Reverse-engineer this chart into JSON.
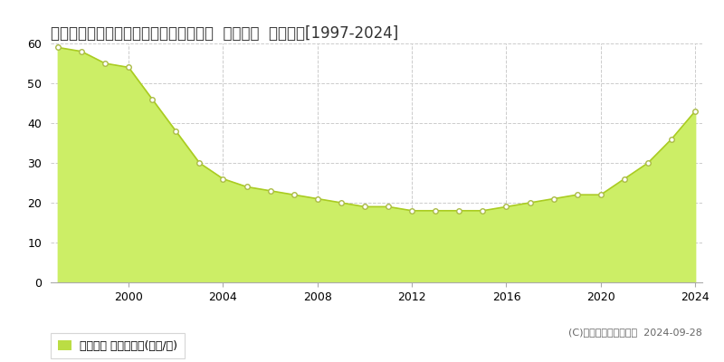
{
  "title": "福岡県福岡市東区多の津２丁目７番２２  基準地価  地価推移[1997-2024]",
  "years": [
    1997,
    1998,
    1999,
    2000,
    2001,
    2002,
    2003,
    2004,
    2005,
    2006,
    2007,
    2008,
    2009,
    2010,
    2011,
    2012,
    2013,
    2014,
    2015,
    2016,
    2017,
    2018,
    2019,
    2020,
    2021,
    2022,
    2023,
    2024
  ],
  "values": [
    59,
    58,
    55,
    54,
    46,
    38,
    30,
    26,
    24,
    23,
    22,
    21,
    20,
    19,
    19,
    18,
    18,
    18,
    18,
    19,
    20,
    21,
    22,
    22,
    26,
    30,
    36,
    43
  ],
  "fill_color": "#ccee66",
  "line_color": "#aacc22",
  "marker_color": "#ffffff",
  "marker_edge_color": "#aabb44",
  "bg_color": "#ffffff",
  "plot_bg_color": "#ffffff",
  "grid_color": "#cccccc",
  "ylim": [
    0,
    60
  ],
  "yticks": [
    0,
    10,
    20,
    30,
    40,
    50,
    60
  ],
  "xticks": [
    2000,
    2004,
    2008,
    2012,
    2016,
    2020,
    2024
  ],
  "legend_label": "基準地価 平均坪単価(万円/坪)",
  "legend_color": "#bbdd44",
  "copyright_text": "(C)土地価格ドットコム  2024-09-28",
  "title_fontsize": 12,
  "tick_fontsize": 9,
  "legend_fontsize": 9,
  "copyright_fontsize": 8
}
